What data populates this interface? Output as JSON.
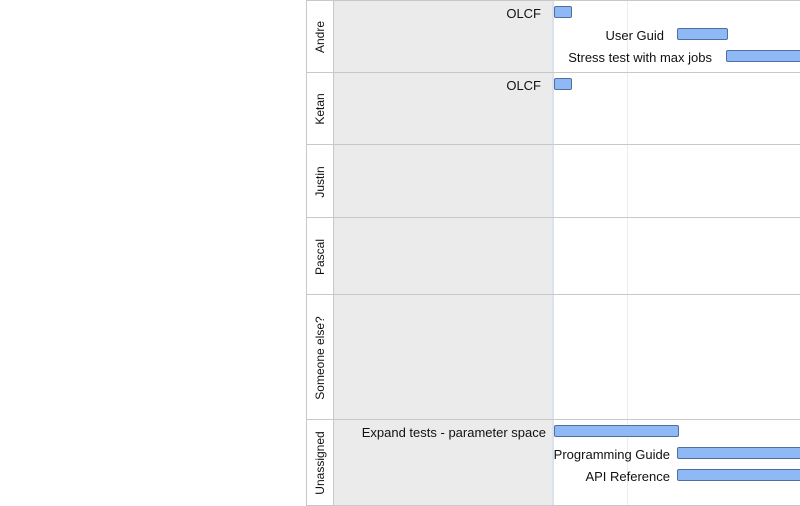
{
  "lanes": [
    {
      "name": "Andre",
      "tasks": [
        {
          "label": "OLCF"
        },
        {
          "label": "User Guid"
        },
        {
          "label": "Stress test with max jobs"
        }
      ]
    },
    {
      "name": "Ketan",
      "tasks": [
        {
          "label": "OLCF"
        }
      ]
    },
    {
      "name": "Justin",
      "tasks": []
    },
    {
      "name": "Pascal",
      "tasks": []
    },
    {
      "name": "Someone else?",
      "tasks": []
    },
    {
      "name": "Unassigned",
      "tasks": [
        {
          "label": "Expand tests - parameter space"
        },
        {
          "label": "Programming Guide"
        },
        {
          "label": "API Reference"
        }
      ]
    }
  ],
  "colors": {
    "bar_fill": "#8fb9f5",
    "bar_border": "#4f6f9e",
    "lane_shade": "#ebebeb"
  }
}
